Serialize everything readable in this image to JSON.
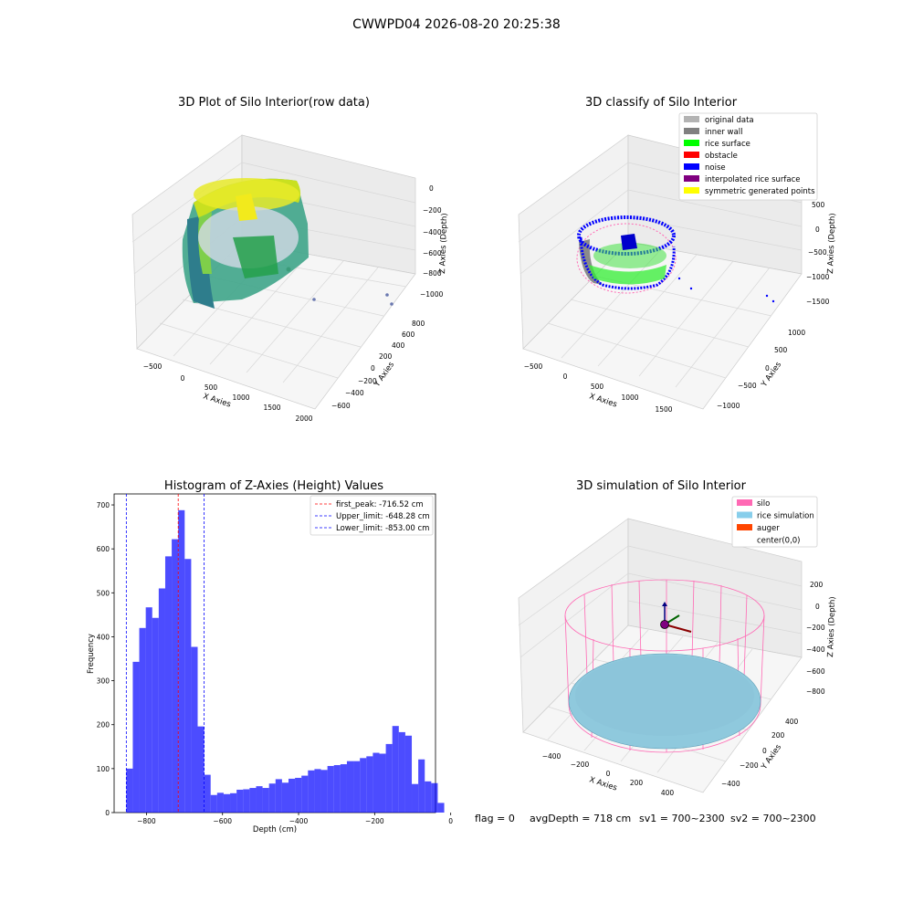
{
  "figure": {
    "suptitle": "CWWPD04 2026-08-20 20:25:38",
    "footer": {
      "flag": "flag = 0",
      "avg_depth": "avgDepth = 718 cm",
      "sv1": "sv1 = 700~2300",
      "sv2": "sv2 = 700~2300"
    }
  },
  "panels": {
    "raw": {
      "title": "3D Plot of Silo Interior(row data)",
      "xlabel": "X Axies",
      "ylabel": "Y Axies",
      "zlabel": "Z Axies (Depth)",
      "xticks": [
        "−500",
        "0",
        "500",
        "1000",
        "1500",
        "2000"
      ],
      "yticks": [
        "−600",
        "−400",
        "−200",
        "0",
        "200",
        "400",
        "600",
        "800"
      ],
      "zticks": [
        "−1000",
        "−800",
        "−600",
        "−400",
        "−200",
        "0"
      ]
    },
    "classify": {
      "title": "3D classify of Silo Interior",
      "xlabel": "X Axies",
      "ylabel": "Y Axies",
      "zlabel": "Z Axies (Depth)",
      "xticks": [
        "−500",
        "0",
        "500",
        "1000",
        "1500"
      ],
      "yticks": [
        "−1000",
        "−500",
        "0",
        "500",
        "1000"
      ],
      "zticks": [
        "−1500",
        "−1000",
        "−500",
        "0",
        "500"
      ],
      "legend": [
        {
          "label": "original data",
          "color": "#b3b3b3"
        },
        {
          "label": "inner wall",
          "color": "#808080"
        },
        {
          "label": "rice surface",
          "color": "#00ff00"
        },
        {
          "label": "obstacle",
          "color": "#ff0000"
        },
        {
          "label": "noise",
          "color": "#0000ff"
        },
        {
          "label": "interpolated rice surface",
          "color": "#800080"
        },
        {
          "label": "symmetric generated points",
          "color": "#ffff00"
        }
      ]
    },
    "simulation": {
      "title": "3D simulation of Silo Interior",
      "xlabel": "X Axies",
      "ylabel": "Y Axies",
      "zlabel": "Z Axies (Depth)",
      "xticks": [
        "−400",
        "−200",
        "0",
        "200",
        "400"
      ],
      "yticks": [
        "−400",
        "−200",
        "0",
        "200",
        "400"
      ],
      "zticks": [
        "−800",
        "−600",
        "−400",
        "−200",
        "0",
        "200"
      ],
      "legend": [
        {
          "label": "silo",
          "color": "#ff69b4"
        },
        {
          "label": "rice simulation",
          "color": "#87ceeb"
        },
        {
          "label": "auger",
          "color": "#ff4500"
        },
        {
          "label": "center(0,0)",
          "color": ""
        }
      ]
    }
  },
  "chart_data": {
    "type": "bar",
    "title": "Histogram of Z-Axies (Height) Values",
    "xlabel": "Depth (cm)",
    "ylabel": "Frequency",
    "xlim": [
      -885,
      -40
    ],
    "ylim": [
      0,
      725
    ],
    "xticks": [
      -800,
      -600,
      -400,
      -200,
      0
    ],
    "xtick_labels": [
      "−800",
      "−600",
      "−400",
      "−200",
      "0"
    ],
    "yticks": [
      0,
      100,
      200,
      300,
      400,
      500,
      600,
      700
    ],
    "bar_color": "#0000ff",
    "bin_start": -853,
    "bin_width": 17.06,
    "values": [
      100,
      343,
      420,
      467,
      443,
      510,
      583,
      622,
      688,
      577,
      377,
      196,
      86,
      40,
      45,
      42,
      44,
      52,
      53,
      56,
      60,
      56,
      66,
      76,
      68,
      77,
      79,
      84,
      96,
      99,
      97,
      106,
      108,
      110,
      117,
      117,
      124,
      128,
      136,
      134,
      156,
      197,
      183,
      175,
      65,
      121,
      71,
      67,
      22
    ],
    "lines": [
      {
        "label": "first_peak: -716.52 cm",
        "value": -716.52,
        "color": "#ff0000"
      },
      {
        "label": "Upper_limit: -648.28 cm",
        "value": -648.28,
        "color": "#0000ff"
      },
      {
        "label": "Lower_limit: -853.00 cm",
        "value": -853.0,
        "color": "#0000ff"
      }
    ],
    "legend_position": "top-right"
  }
}
